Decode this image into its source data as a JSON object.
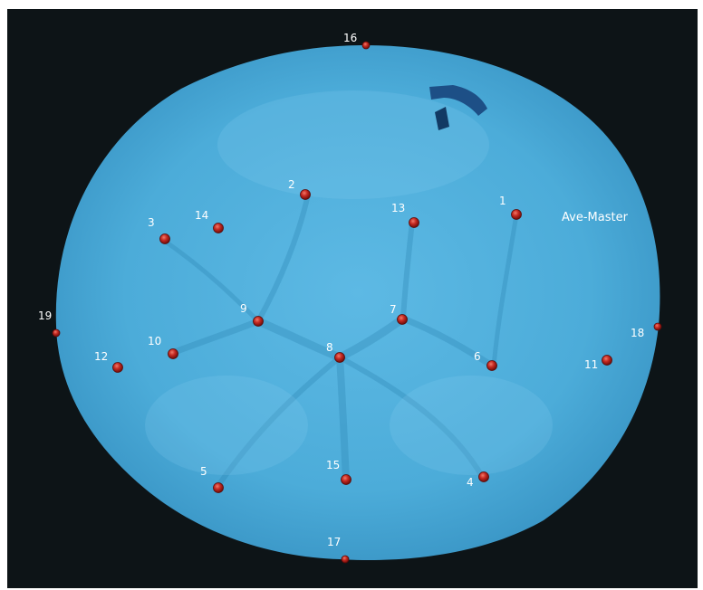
{
  "scan": {
    "model_label": "Ave-Master",
    "landmarks": [
      {
        "id": "1"
      },
      {
        "id": "2"
      },
      {
        "id": "3"
      },
      {
        "id": "4"
      },
      {
        "id": "5"
      },
      {
        "id": "6"
      },
      {
        "id": "7"
      },
      {
        "id": "8"
      },
      {
        "id": "9"
      },
      {
        "id": "10"
      },
      {
        "id": "11"
      },
      {
        "id": "12"
      },
      {
        "id": "13"
      },
      {
        "id": "14"
      },
      {
        "id": "15"
      },
      {
        "id": "16"
      },
      {
        "id": "17"
      },
      {
        "id": "18"
      },
      {
        "id": "19"
      }
    ]
  },
  "colors": {
    "background": "#0d1417",
    "tooth_surface": "#4fb0dd",
    "landmark_marker": "#c0201c",
    "label_text": "#ffffff",
    "edge_label_text": "#d8f0c8"
  }
}
